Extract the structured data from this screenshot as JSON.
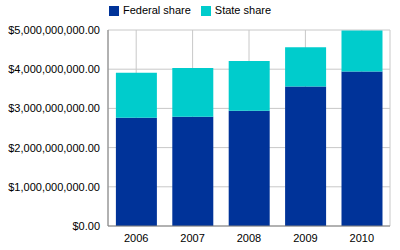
{
  "chart_data": {
    "type": "bar",
    "stacked": true,
    "categories": [
      "2006",
      "2007",
      "2008",
      "2009",
      "2010"
    ],
    "series": [
      {
        "name": "Federal share",
        "color": "#003399",
        "values": [
          2760000000,
          2790000000,
          2940000000,
          3560000000,
          3940000000
        ]
      },
      {
        "name": "State share",
        "color": "#00CCCC",
        "values": [
          1150000000,
          1240000000,
          1270000000,
          1000000000,
          1050000000
        ]
      }
    ],
    "ylim": [
      0,
      5000000000
    ],
    "yticks": [
      {
        "value": 0,
        "label": "$0.00"
      },
      {
        "value": 1000000000,
        "label": "$1,000,000,000.00"
      },
      {
        "value": 2000000000,
        "label": "$2,000,000,000.00"
      },
      {
        "value": 3000000000,
        "label": "$3,000,000,000.00"
      },
      {
        "value": 4000000000,
        "label": "$4,000,000,000.00"
      },
      {
        "value": 5000000000,
        "label": "$5,000,000,000.00"
      }
    ],
    "grid": true,
    "legend": "top"
  }
}
